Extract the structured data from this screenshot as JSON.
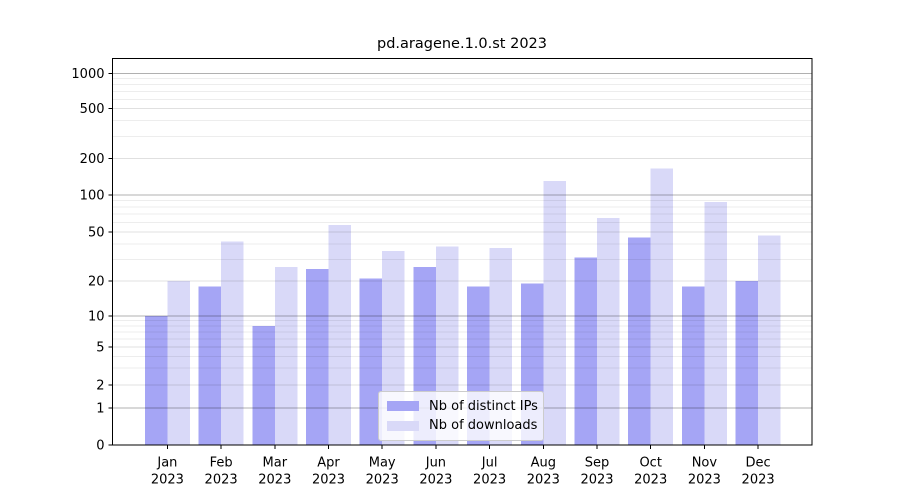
{
  "title": "pd.aragene.1.0.st 2023",
  "chart_data": {
    "type": "bar",
    "title": "pd.aragene.1.0.st 2023",
    "xlabel": "",
    "ylabel": "",
    "yscale": "symlog",
    "ylim": [
      0,
      1350
    ],
    "grid": true,
    "legend_position": "lower center",
    "yticks": [
      0,
      1,
      2,
      5,
      10,
      20,
      50,
      100,
      200,
      500,
      1000
    ],
    "categories": [
      "Jan 2023",
      "Feb 2023",
      "Mar 2023",
      "Apr 2023",
      "May 2023",
      "Jun 2023",
      "Jul 2023",
      "Aug 2023",
      "Sep 2023",
      "Oct 2023",
      "Nov 2023",
      "Dec 2023"
    ],
    "series": [
      {
        "name": "Nb of distinct IPs",
        "color": "#a5a5f5",
        "values": [
          10,
          18,
          8,
          25,
          21,
          26,
          18,
          19,
          31,
          45,
          18,
          20
        ]
      },
      {
        "name": "Nb of downloads",
        "color": "#d9d9f8",
        "values": [
          20,
          42,
          26,
          57,
          35,
          38,
          37,
          130,
          65,
          165,
          88,
          47
        ]
      }
    ],
    "colors": {
      "grid_major": "#b0b0b0",
      "grid_minor": "#e8e8e8",
      "axis": "#000000",
      "background": "#ffffff",
      "legend_border": "#cccccc"
    }
  }
}
